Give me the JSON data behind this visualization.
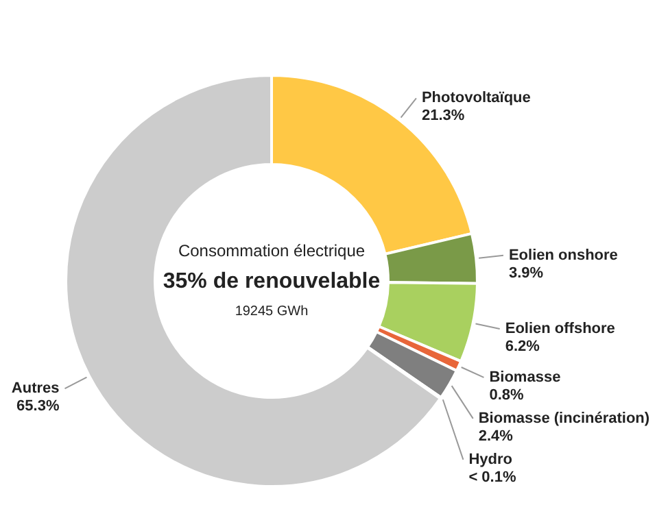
{
  "chart_data": {
    "type": "donut",
    "subtitle": "Consommation électrique",
    "title": "35% de renouvelable",
    "annotations": [
      "19245 GWh"
    ],
    "categories": [
      "Photovoltaïque",
      "Eolien onshore",
      "Eolien offshore",
      "Biomasse",
      "Biomasse (incinération)",
      "Hydro",
      "Autres"
    ],
    "values": [
      21.3,
      3.9,
      6.2,
      0.8,
      2.4,
      0.1,
      65.3
    ],
    "value_labels": [
      "21.3%",
      "3.9%",
      "6.2%",
      "0.8%",
      "2.4%",
      "< 0.1%",
      "65.3%"
    ],
    "colors": [
      "#ffc845",
      "#7a9a48",
      "#a9d05f",
      "#e8663a",
      "#7f7f7f",
      "#5b8fd0",
      "#cccccc"
    ]
  }
}
